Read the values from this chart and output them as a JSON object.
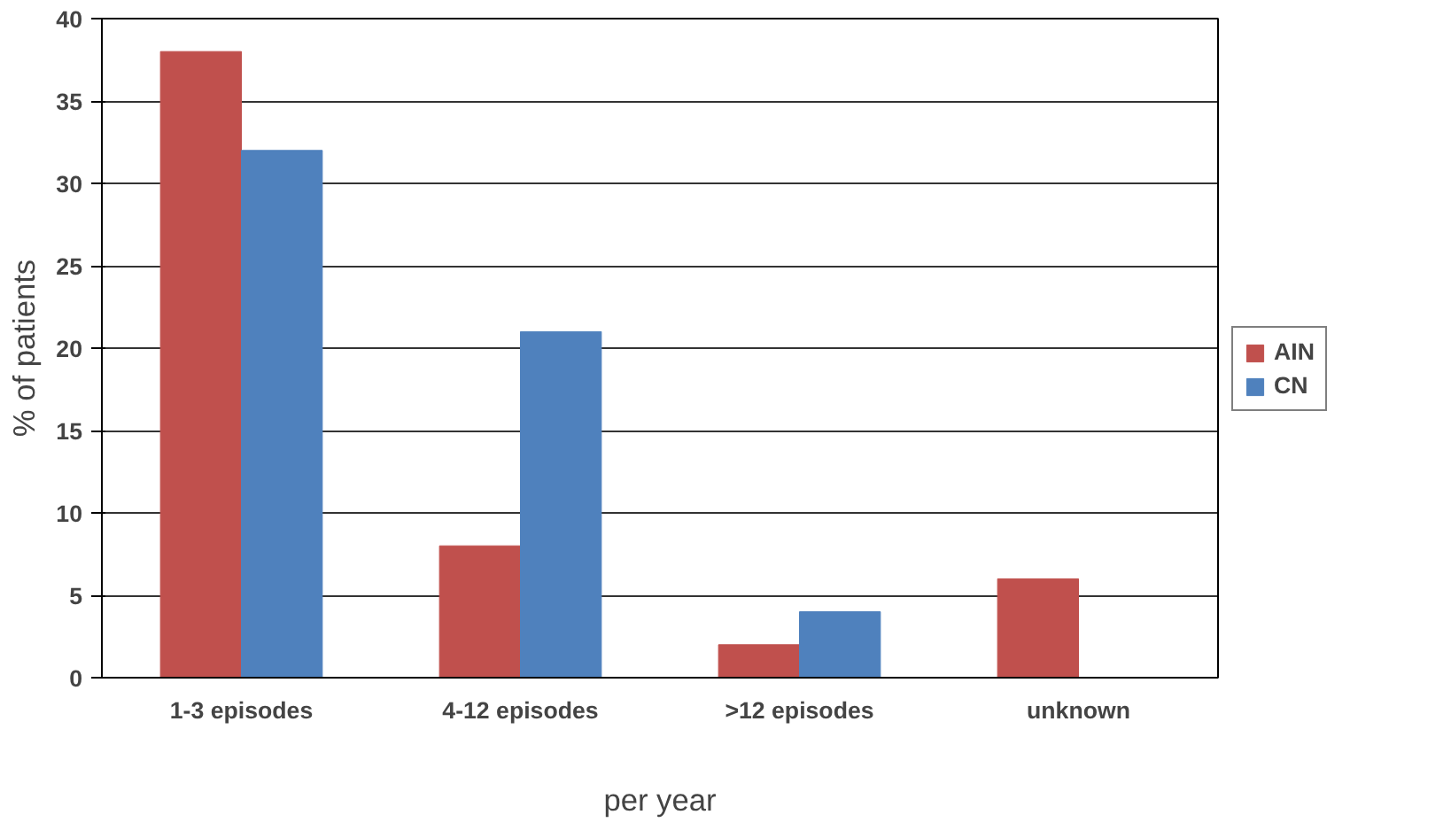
{
  "chart_data": {
    "type": "bar",
    "xlabel": "per year",
    "ylabel": "% of patients",
    "categories": [
      "1-3 episodes",
      "4-12 episodes",
      ">12 episodes",
      "unknown"
    ],
    "series": [
      {
        "name": "AIN",
        "color": "#c0504d",
        "values": [
          38,
          8,
          2,
          6
        ]
      },
      {
        "name": "CN",
        "color": "#4f81bd",
        "values": [
          32,
          21,
          4,
          0
        ]
      }
    ],
    "ylim": [
      0,
      40
    ],
    "yticks": [
      0,
      5,
      10,
      15,
      20,
      25,
      30,
      35,
      40
    ],
    "grid": "y",
    "legend": "right"
  }
}
